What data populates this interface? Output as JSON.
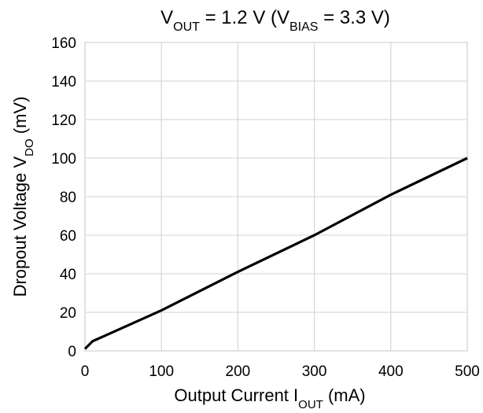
{
  "chart_data": {
    "type": "line",
    "title": {
      "parts": [
        "V",
        "OUT",
        " = 1.2 V (V",
        "BIAS",
        " = 3.3 V)"
      ]
    },
    "xlabel": {
      "parts": [
        "Output Current I",
        "OUT",
        " (mA)"
      ]
    },
    "ylabel": {
      "parts": [
        "Dropout Voltage V",
        "DO",
        " (mV)"
      ]
    },
    "xlim": [
      0,
      500
    ],
    "ylim": [
      0,
      160
    ],
    "x_ticks": [
      "0",
      "100",
      "200",
      "300",
      "400",
      "500"
    ],
    "y_ticks": [
      "0",
      "20",
      "40",
      "60",
      "80",
      "100",
      "120",
      "140",
      "160"
    ],
    "grid": true,
    "series": [
      {
        "color": "#000000",
        "x": [
          0,
          10,
          100,
          200,
          300,
          400,
          500
        ],
        "y": [
          1,
          5,
          21,
          41,
          60,
          81,
          100
        ]
      }
    ]
  }
}
